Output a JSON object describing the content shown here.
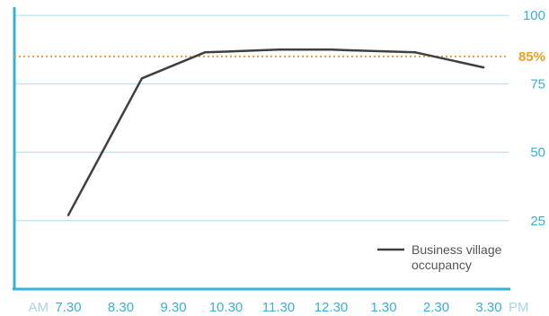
{
  "chart_data": {
    "type": "line",
    "x_prefix": "AM",
    "x_suffix": "PM",
    "categories": [
      "7.30",
      "8.30",
      "9.30",
      "10.30",
      "11.30",
      "12.30",
      "1.30",
      "2.30",
      "3.30"
    ],
    "series": [
      {
        "name": "Business village occupancy",
        "color": "#404040",
        "points": [
          {
            "x": 0,
            "y": 27
          },
          {
            "x": 1.4,
            "y": 77
          },
          {
            "x": 2.6,
            "y": 86.5
          },
          {
            "x": 4.0,
            "y": 87.5
          },
          {
            "x": 5.0,
            "y": 87.5
          },
          {
            "x": 6.6,
            "y": 86.5
          },
          {
            "x": 7.9,
            "y": 81
          }
        ]
      }
    ],
    "yticks": [
      25,
      50,
      75,
      100
    ],
    "ylim": [
      0,
      103
    ],
    "y_axis_position": "right",
    "reference_line": {
      "value": 85,
      "label": "85%",
      "color": "#f0a020",
      "style": "dotted"
    },
    "grid": "horizontal",
    "legend_position": "bottom-right",
    "colors": {
      "axis": "#3ab0d6",
      "grid": "#a8dcef",
      "tick_label": "#3ab0d6"
    }
  }
}
